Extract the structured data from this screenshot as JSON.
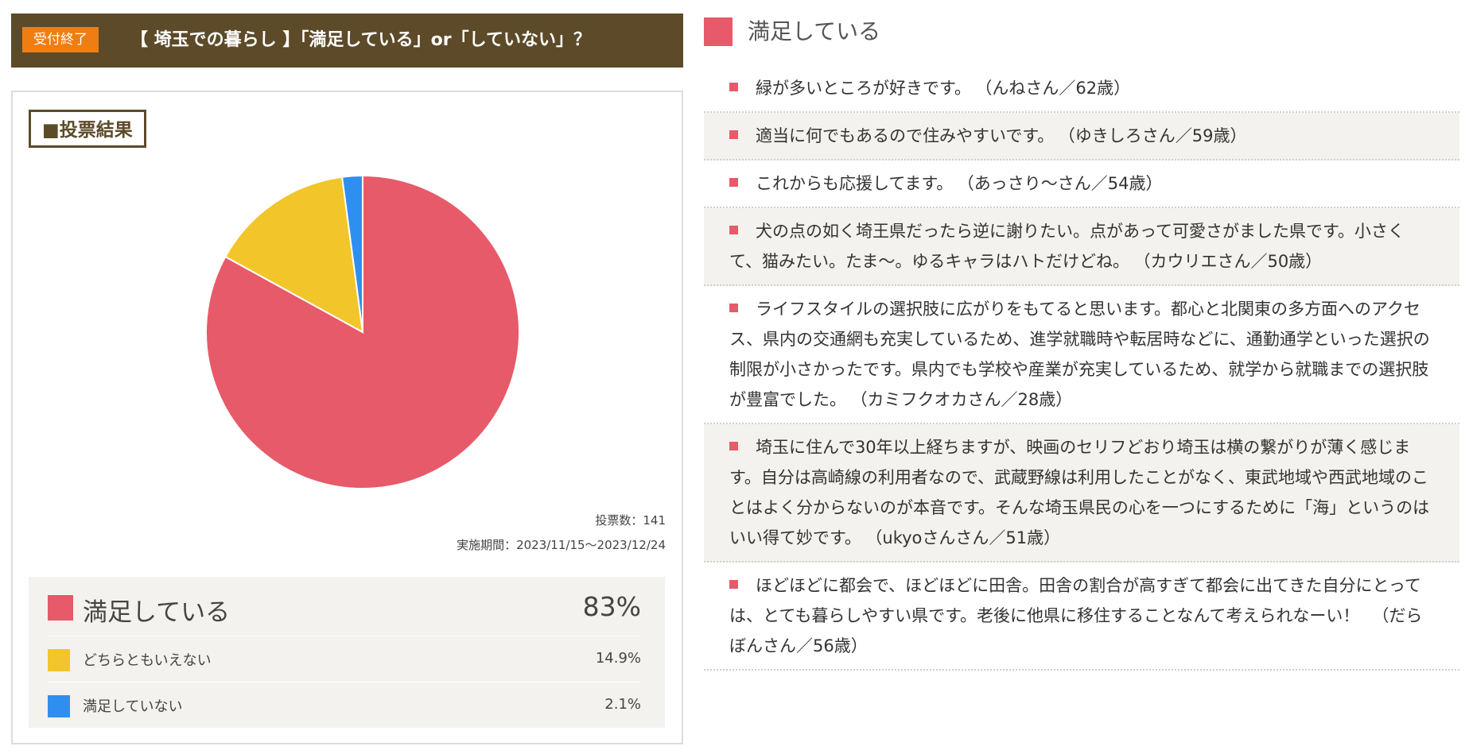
{
  "header": {
    "badge": "受付終了",
    "title": "【 埼玉での暮らし 】「満足している」or「していない」？"
  },
  "result": {
    "heading": "■投票結果",
    "votes": "投票数：141",
    "period": "実施期間：2023/11/15～2023/12/24"
  },
  "chart_data": {
    "type": "pie",
    "categories": [
      "満足している",
      "どちらともいえない",
      "満足していない"
    ],
    "values": [
      83,
      14.9,
      2.1
    ],
    "value_labels": [
      "83%",
      "14.9%",
      "2.1%"
    ],
    "colors": [
      "#e65a6a",
      "#f2c62a",
      "#2f8ff0"
    ],
    "legend": "bottom"
  },
  "comments_section": {
    "category": "満足している",
    "color": "#e65a6a",
    "items": [
      {
        "text": "緑が多いところが好きです。",
        "author": "（んねさん／62歳）"
      },
      {
        "text": "適当に何でもあるので住みやすいです。",
        "author": "（ゆきしろさん／59歳）"
      },
      {
        "text": "これからも応援してます。",
        "author": "（あっさり～さん／54歳）"
      },
      {
        "text": "犬の点の如く埼王県だったら逆に謝りたい。点があって可愛さがました県です。小さくて、猫みたい。たま～。ゆるキャラはハトだけどね。",
        "author": "（カウリエさん／50歳）"
      },
      {
        "text": "ライフスタイルの選択肢に広がりをもてると思います。都心と北関東の多方面へのアクセス、県内の交通網も充実しているため、進学就職時や転居時などに、通勤通学といった選択の制限が小さかったです。県内でも学校や産業が充実しているため、就学から就職までの選択肢が豊富でした。",
        "author": "（カミフクオカさん／28歳）"
      },
      {
        "text": "埼玉に住んで30年以上経ちますが、映画のセリフどおり埼玉は横の繋がりが薄く感じます。自分は高崎線の利用者なので、武蔵野線は利用したことがなく、東武地域や西武地域のことはよく分からないのが本音です。そんな埼玉県民の心を一つにするために「海」というのはいい得て妙です。",
        "author": "（ukyoさんさん／51歳）"
      },
      {
        "text": "ほどほどに都会で、ほどほどに田舎。田舎の割合が高すぎて都会に出てきた自分にとっては、とても暮らしやすい県です。老後に他県に移住することなんて考えられなーい！",
        "author": "（だらぼんさん／56歳）"
      }
    ]
  }
}
